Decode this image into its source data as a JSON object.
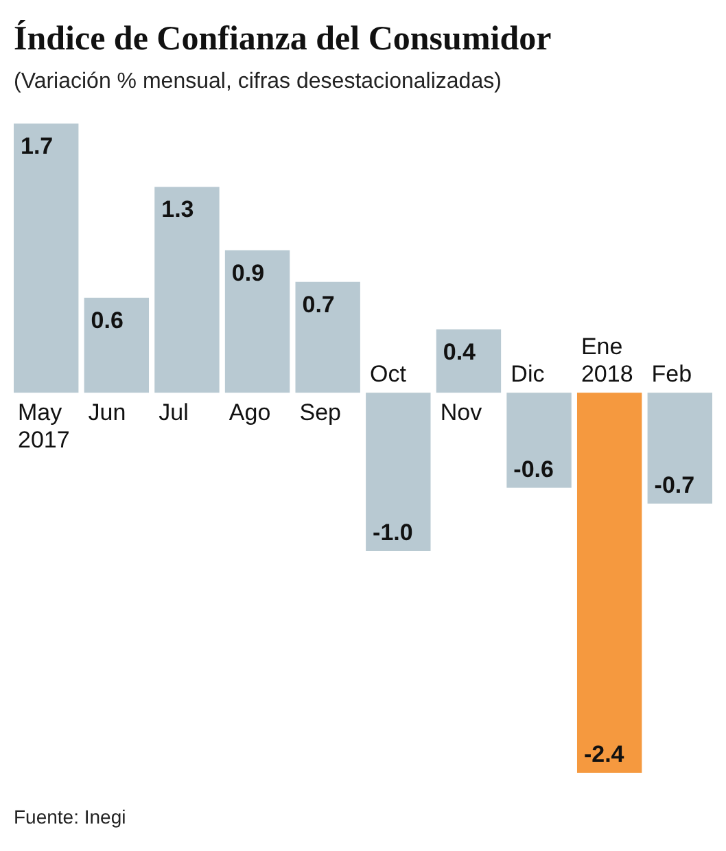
{
  "chart_data": {
    "type": "bar",
    "title": "Índice de Confianza del Consumidor",
    "subtitle": "(Variación % mensual, cifras desestacionalizadas)",
    "categories": [
      "May 2017",
      "Jun",
      "Jul",
      "Ago",
      "Sep",
      "Oct",
      "Nov",
      "Dic",
      "Ene 2018",
      "Feb"
    ],
    "values": [
      1.7,
      0.6,
      1.3,
      0.9,
      0.7,
      -1.0,
      0.4,
      -0.6,
      -2.4,
      -0.7
    ],
    "colors": [
      "#b8c9d2",
      "#b8c9d2",
      "#b8c9d2",
      "#b8c9d2",
      "#b8c9d2",
      "#b8c9d2",
      "#b8c9d2",
      "#b8c9d2",
      "#f5993f",
      "#b8c9d2"
    ],
    "value_labels": [
      "1.7",
      "0.6",
      "1.3",
      "0.9",
      "0.7",
      "-1.0",
      "0.4",
      "-0.6",
      "-2.4",
      "-0.7"
    ],
    "annotations": [
      "Fuente: Inegi"
    ]
  }
}
